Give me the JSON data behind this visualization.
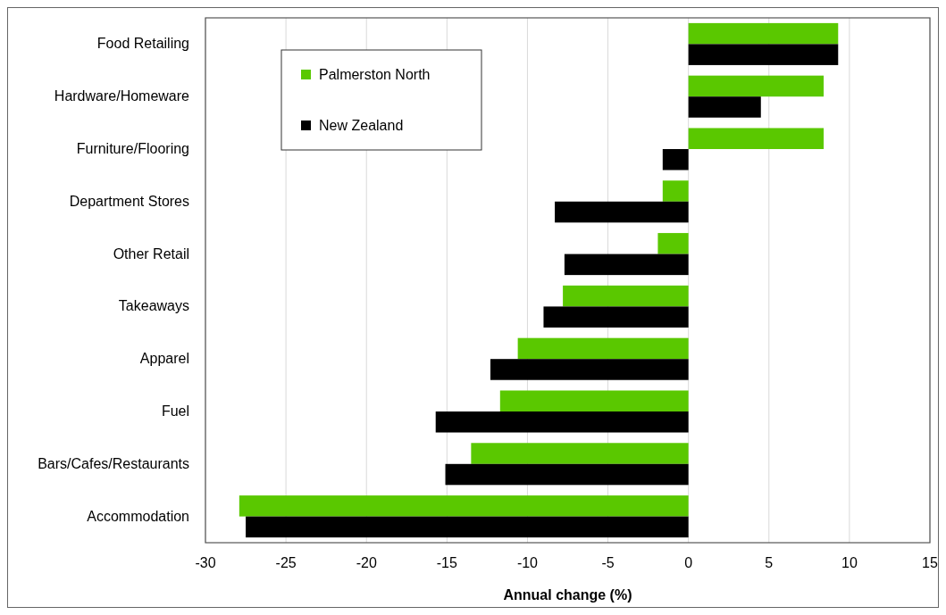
{
  "chart_data": {
    "type": "bar",
    "orientation": "horizontal",
    "xlabel": "Annual change (%)",
    "categories": [
      "Food Retailing",
      "Hardware/Homeware",
      "Furniture/Flooring",
      "Department Stores",
      "Other Retail",
      "Takeaways",
      "Apparel",
      "Fuel",
      "Bars/Cafes/Restaurants",
      "Accommodation"
    ],
    "series": [
      {
        "name": "Palmerston North",
        "color": "#5ac800",
        "values": [
          9.3,
          8.4,
          8.4,
          -1.6,
          -1.9,
          -7.8,
          -10.6,
          -11.7,
          -13.5,
          -27.9
        ]
      },
      {
        "name": "New Zealand",
        "color": "#000000",
        "values": [
          9.3,
          4.5,
          -1.6,
          -8.3,
          -7.7,
          -9.0,
          -12.3,
          -15.7,
          -15.1,
          -27.5
        ]
      }
    ],
    "xlim": [
      -30,
      15
    ],
    "xticks": [
      -30,
      -25,
      -20,
      -15,
      -10,
      -5,
      0,
      5,
      10,
      15
    ],
    "grid": "x",
    "legend": "top left"
  }
}
